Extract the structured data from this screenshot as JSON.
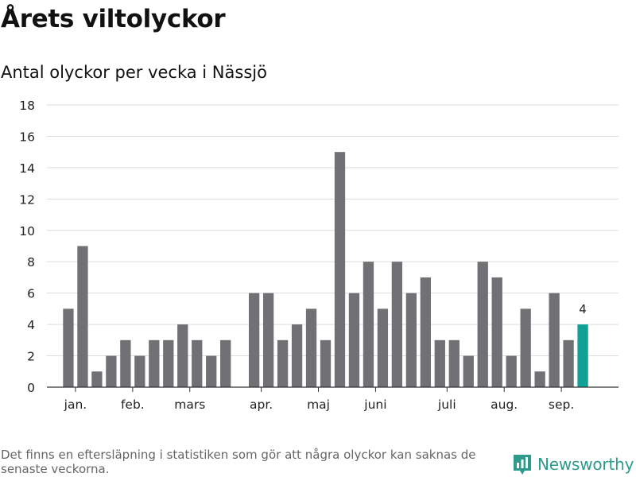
{
  "header": {
    "title": "Årets viltolyckor",
    "subtitle": "Antal olyckor per vecka i Nässjö"
  },
  "footnote": "Det finns en eftersläpning i statistiken som gör att några olyckor kan saknas de senaste veckorna.",
  "brand": {
    "name": "Newsworthy",
    "icon": "newsworthy-chart-icon"
  },
  "colors": {
    "bar": "#717074",
    "highlight": "#10a195",
    "grid": "#dddddd",
    "axis": "#333333"
  },
  "chart_data": {
    "type": "bar",
    "yticks": [
      0,
      2,
      4,
      6,
      8,
      10,
      12,
      14,
      16,
      18
    ],
    "ylim": [
      0,
      18
    ],
    "grid": true,
    "x_range": [
      -1.5,
      38.5
    ],
    "values": [
      5,
      9,
      1,
      2,
      3,
      2,
      3,
      3,
      4,
      3,
      2,
      3,
      null,
      6,
      6,
      3,
      4,
      5,
      3,
      15,
      6,
      8,
      5,
      8,
      6,
      7,
      3,
      3,
      2,
      8,
      7,
      2,
      5,
      1,
      6,
      3,
      4
    ],
    "highlight_index": 36,
    "data_labels": [
      {
        "index": 36,
        "text": "4"
      }
    ],
    "month_ticks": [
      {
        "label": "jan.",
        "pos": 0.5
      },
      {
        "label": "feb.",
        "pos": 4.5
      },
      {
        "label": "mars",
        "pos": 8.5
      },
      {
        "label": "apr.",
        "pos": 13.5
      },
      {
        "label": "maj",
        "pos": 17.5
      },
      {
        "label": "juni",
        "pos": 21.5
      },
      {
        "label": "juli",
        "pos": 26.5
      },
      {
        "label": "aug.",
        "pos": 30.5
      },
      {
        "label": "sep.",
        "pos": 34.5
      }
    ]
  }
}
